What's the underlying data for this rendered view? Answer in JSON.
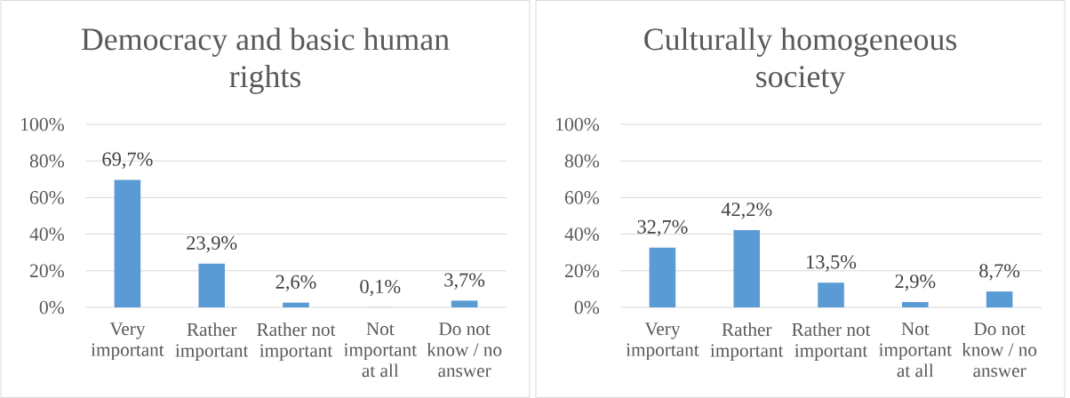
{
  "chart_data": [
    {
      "type": "bar",
      "title": "Democracy and basic human rights",
      "categories": [
        "Very important",
        "Rather important",
        "Rather not important",
        "Not important at all",
        "Do not know / no answer"
      ],
      "values": [
        69.7,
        23.9,
        2.6,
        0.1,
        3.7
      ],
      "value_labels": [
        "69,7%",
        "23,9%",
        "2,6%",
        "0,1%",
        "3,7%"
      ],
      "color": "#5b9bd5",
      "ylim": [
        0,
        100
      ],
      "yticks": [
        {
          "value": 0,
          "label": "0%"
        },
        {
          "value": 20,
          "label": "20%"
        },
        {
          "value": 40,
          "label": "40%"
        },
        {
          "value": 60,
          "label": "60%"
        },
        {
          "value": 80,
          "label": "80%"
        },
        {
          "value": 100,
          "label": "100%"
        }
      ],
      "grid": "y"
    },
    {
      "type": "bar",
      "title": "Culturally homogeneous society",
      "categories": [
        "Very important",
        "Rather important",
        "Rather not important",
        "Not important at all",
        "Do not know / no answer"
      ],
      "values": [
        32.7,
        42.2,
        13.5,
        2.9,
        8.7
      ],
      "value_labels": [
        "32,7%",
        "42,2%",
        "13,5%",
        "2,9%",
        "8,7%"
      ],
      "color": "#5b9bd5",
      "ylim": [
        0,
        100
      ],
      "yticks": [
        {
          "value": 0,
          "label": "0%"
        },
        {
          "value": 20,
          "label": "20%"
        },
        {
          "value": 40,
          "label": "40%"
        },
        {
          "value": 60,
          "label": "60%"
        },
        {
          "value": 80,
          "label": "80%"
        },
        {
          "value": 100,
          "label": "100%"
        }
      ],
      "grid": "y"
    }
  ]
}
